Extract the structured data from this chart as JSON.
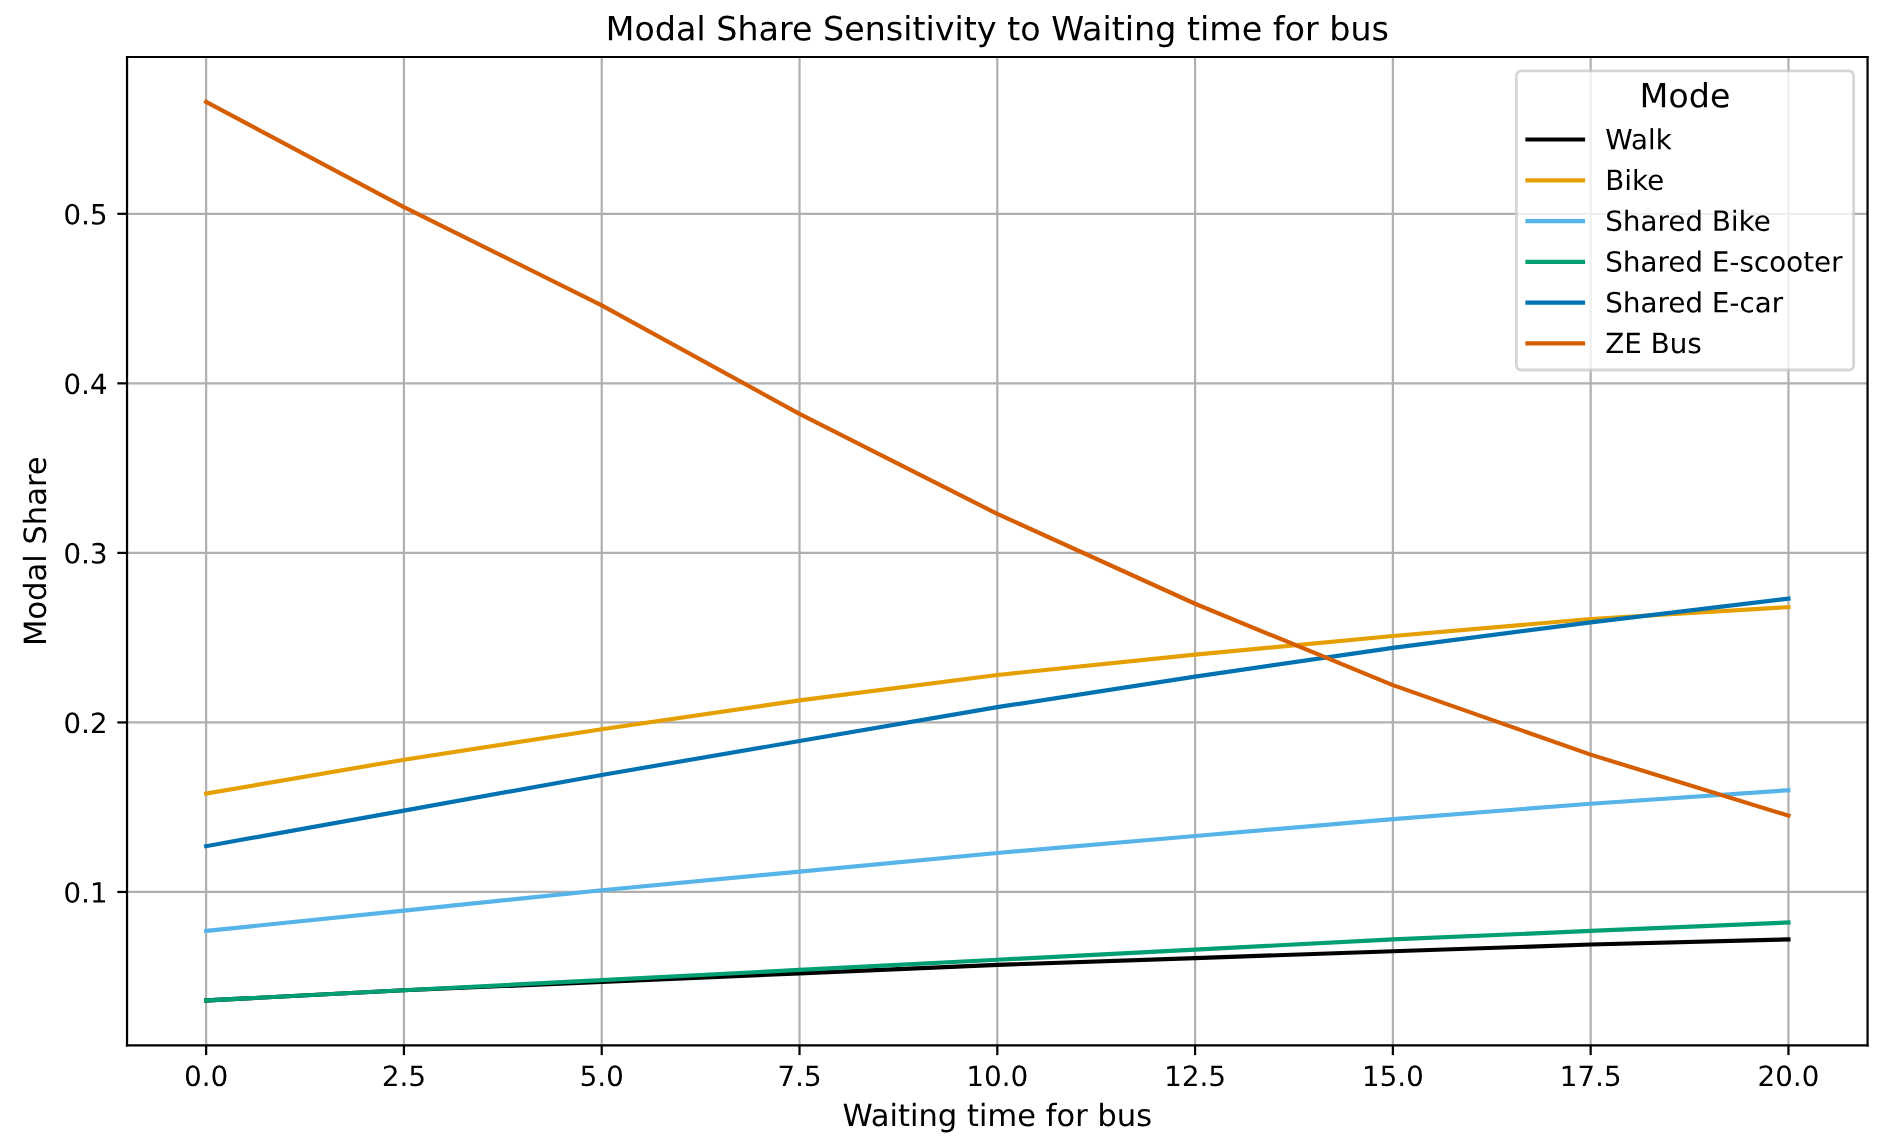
{
  "chart_data": {
    "type": "line",
    "title": "Modal Share Sensitivity to Waiting time for bus",
    "xlabel": "Waiting time for bus",
    "ylabel": "Modal Share",
    "legend_title": "Mode",
    "legend": "top right",
    "grid": true,
    "marker": "none",
    "line_style": "solid",
    "xlim": [
      -1,
      21
    ],
    "ylim": [
      0.0095,
      0.5925
    ],
    "xticks": [
      {
        "value": 0,
        "label": "0.0"
      },
      {
        "value": 2.5,
        "label": "2.5"
      },
      {
        "value": 5,
        "label": "5.0"
      },
      {
        "value": 7.5,
        "label": "7.5"
      },
      {
        "value": 10,
        "label": "10.0"
      },
      {
        "value": 12.5,
        "label": "12.5"
      },
      {
        "value": 15,
        "label": "15.0"
      },
      {
        "value": 17.5,
        "label": "17.5"
      },
      {
        "value": 20,
        "label": "20.0"
      }
    ],
    "yticks": [
      0.1,
      0.2,
      0.3,
      0.4,
      0.5
    ],
    "x": [
      0,
      2.5,
      5,
      7.5,
      10,
      12.5,
      15,
      17.5,
      20
    ],
    "series": [
      {
        "name": "Walk",
        "color": "#000000",
        "values": [
          0.036,
          0.042,
          0.047,
          0.052,
          0.057,
          0.061,
          0.065,
          0.069,
          0.072
        ]
      },
      {
        "name": "Bike",
        "color": "#e69f00",
        "values": [
          0.158,
          0.178,
          0.196,
          0.213,
          0.228,
          0.24,
          0.251,
          0.261,
          0.268
        ]
      },
      {
        "name": "Shared Bike",
        "color": "#56b4e9",
        "values": [
          0.077,
          0.089,
          0.101,
          0.112,
          0.123,
          0.133,
          0.143,
          0.152,
          0.16
        ]
      },
      {
        "name": "Shared E-scooter",
        "color": "#009e73",
        "values": [
          0.036,
          0.042,
          0.048,
          0.054,
          0.06,
          0.066,
          0.072,
          0.077,
          0.082
        ]
      },
      {
        "name": "Shared E-car",
        "color": "#0072b2",
        "values": [
          0.127,
          0.148,
          0.169,
          0.189,
          0.209,
          0.227,
          0.244,
          0.259,
          0.273
        ]
      },
      {
        "name": "ZE Bus",
        "color": "#d55e00",
        "values": [
          0.566,
          0.504,
          0.446,
          0.382,
          0.323,
          0.27,
          0.222,
          0.181,
          0.145
        ]
      }
    ]
  }
}
